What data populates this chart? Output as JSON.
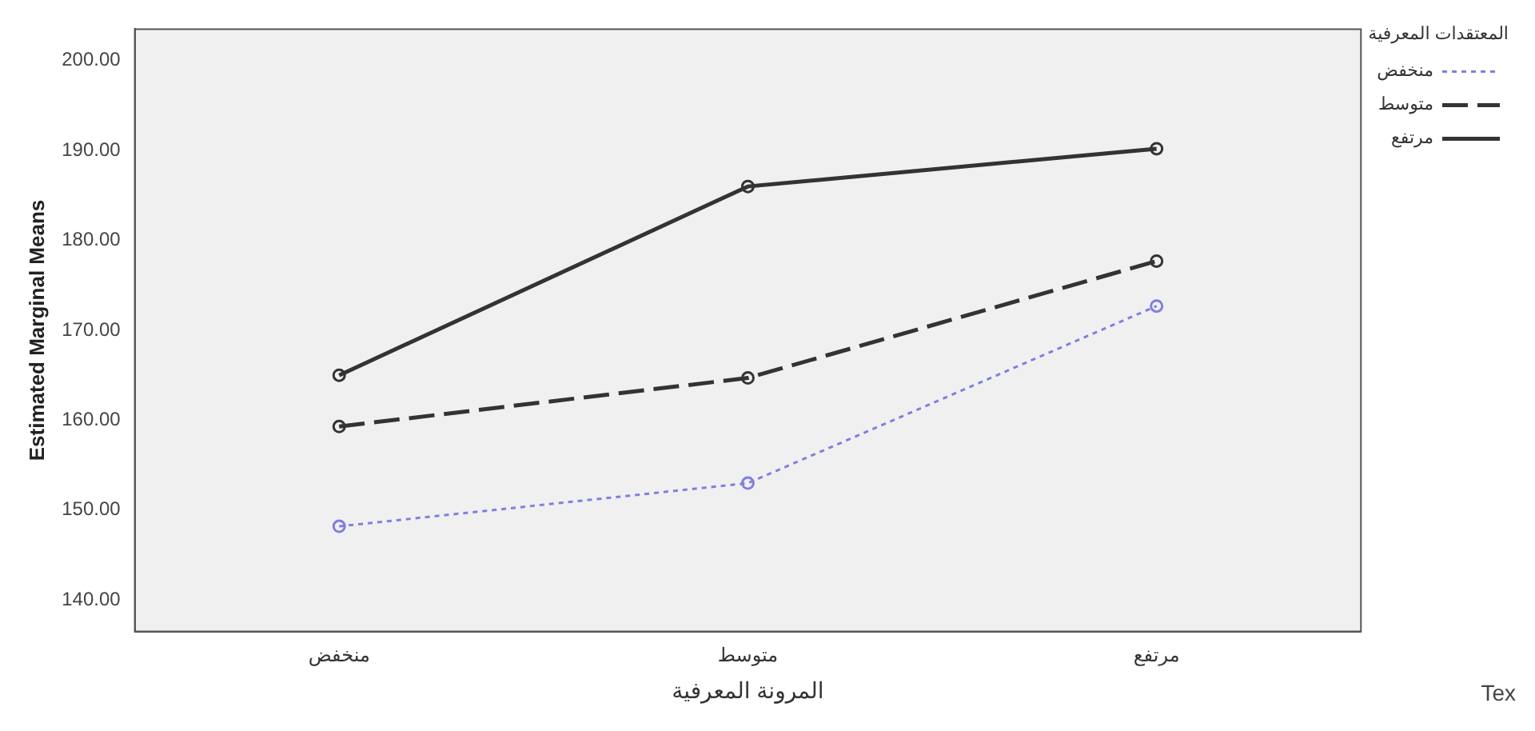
{
  "chart_data": {
    "type": "line",
    "xlabel": "المرونة المعرفية",
    "ylabel": "Estimated Marginal Means",
    "legend_title": "المعتقدات المعرفية",
    "categories": [
      "منخفض",
      "متوسط",
      "مرتفع"
    ],
    "series": [
      {
        "name": "منخفض",
        "color": "#7f7fe0",
        "line_style": "dotted",
        "values": [
          148.2,
          153.0,
          172.7
        ]
      },
      {
        "name": "متوسط",
        "color": "#333333",
        "line_style": "dashed",
        "values": [
          159.3,
          164.7,
          177.7
        ]
      },
      {
        "name": "مرتفع",
        "color": "#333333",
        "line_style": "solid",
        "values": [
          165.0,
          186.0,
          190.2
        ]
      }
    ],
    "ylim": [
      136.5,
      203.5
    ],
    "yticks": [
      {
        "value": 140,
        "label": "140.00"
      },
      {
        "value": 150,
        "label": "150.00"
      },
      {
        "value": 160,
        "label": "160.00"
      },
      {
        "value": 170,
        "label": "170.00"
      },
      {
        "value": 180,
        "label": "180.00"
      },
      {
        "value": 190,
        "label": "190.00"
      },
      {
        "value": 200,
        "label": "200.00"
      }
    ],
    "grid": false,
    "legend": "top right",
    "marker": "circle",
    "annotations": [
      "Tex"
    ]
  }
}
